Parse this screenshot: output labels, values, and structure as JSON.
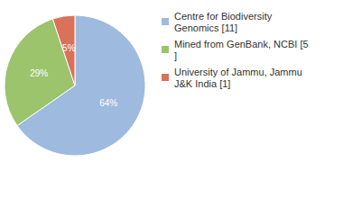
{
  "chart_data": {
    "type": "pie",
    "categories": [
      "Centre for Biodiversity Genomics [11]",
      "Mined from GenBank, NCBI [5]",
      "University of Jammu, Jammu J&K India [1]"
    ],
    "values": [
      64,
      29,
      5
    ],
    "value_labels": [
      "64%",
      "29%",
      "5%"
    ],
    "colors": [
      "#9ebade",
      "#9cc46c",
      "#d9715b"
    ],
    "data_labels": true,
    "legend": "top-right"
  }
}
